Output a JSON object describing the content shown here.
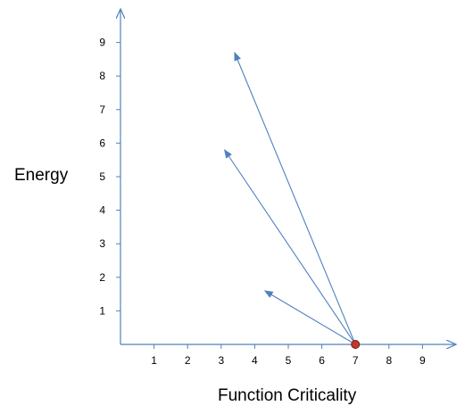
{
  "chart_data": {
    "type": "vector",
    "title": "",
    "xlabel": "Function Criticality",
    "ylabel": "Energy",
    "xlim": [
      0,
      10
    ],
    "ylim": [
      0,
      10
    ],
    "x_ticks": [
      "1",
      "2",
      "3",
      "4",
      "5",
      "6",
      "7",
      "8",
      "9"
    ],
    "y_ticks": [
      "1",
      "2",
      "3",
      "4",
      "5",
      "6",
      "7",
      "8",
      "9"
    ],
    "grid": false,
    "legend": "none",
    "origin_point": {
      "x": 7,
      "y": 0
    },
    "vectors": [
      {
        "from": [
          7,
          0
        ],
        "to": [
          4.3,
          1.6
        ]
      },
      {
        "from": [
          7,
          0
        ],
        "to": [
          3.1,
          5.8
        ]
      },
      {
        "from": [
          7,
          0
        ],
        "to": [
          3.4,
          8.7
        ]
      }
    ],
    "colors": {
      "axis": "#4F81BD",
      "arrow": "#4F81BD",
      "point": "#C0392B"
    }
  }
}
